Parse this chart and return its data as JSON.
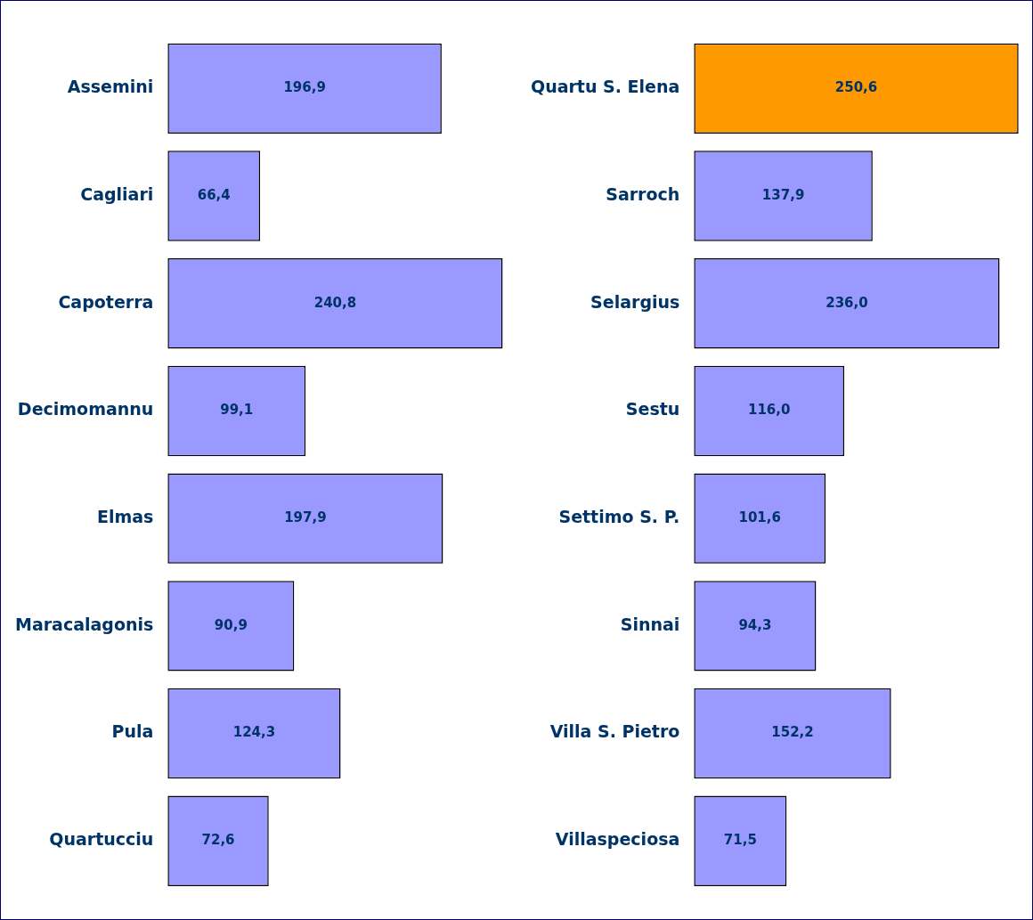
{
  "chart_data": [
    {
      "type": "bar",
      "orientation": "horizontal",
      "categories": [
        "Assemini",
        "Cagliari",
        "Capoterra",
        "Decimomannu",
        "Elmas",
        "Maracalagonis",
        "Pula",
        "Quartucciu"
      ],
      "values": [
        196.9,
        66.4,
        240.8,
        99.1,
        197.9,
        90.9,
        124.3,
        72.6
      ],
      "color": "#9999ff",
      "value_labels": [
        "196,9",
        "66,4",
        "240,8",
        "99,1",
        "197,9",
        "90,9",
        "124,3",
        "72,6"
      ],
      "grid": false,
      "legend": false,
      "tick_labels": "y"
    },
    {
      "type": "bar",
      "orientation": "horizontal",
      "categories": [
        "Quartu S. Elena",
        "Sarroch",
        "Selargius",
        "Sestu",
        "Settimo S. P.",
        "Sinnai",
        "Villa S. Pietro",
        "Villaspeciosa"
      ],
      "values": [
        250.6,
        137.9,
        236.0,
        116.0,
        101.6,
        94.3,
        152.2,
        71.5
      ],
      "colors": [
        "#ff9900",
        "#9999ff",
        "#9999ff",
        "#9999ff",
        "#9999ff",
        "#9999ff",
        "#9999ff",
        "#9999ff"
      ],
      "value_labels": [
        "250,6",
        "137,9",
        "236,0",
        "116,0",
        "101,6",
        "94,3",
        "152,2",
        "71,5"
      ],
      "grid": false,
      "legend": false,
      "tick_labels": "y"
    }
  ]
}
